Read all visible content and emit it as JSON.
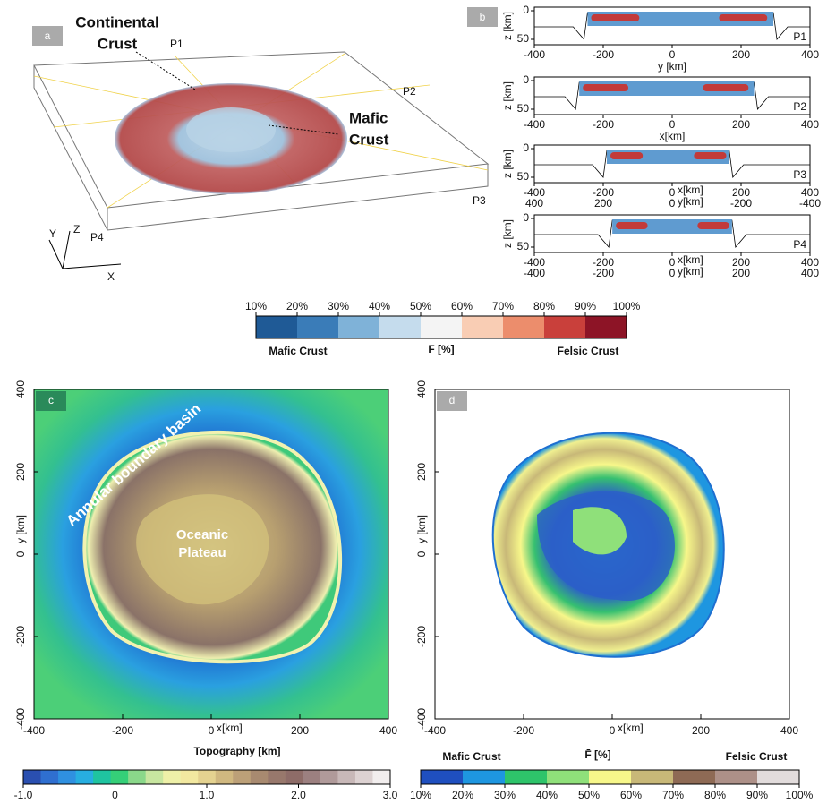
{
  "panel_a": {
    "label": "a",
    "continental_crust": [
      "Continental",
      "Crust"
    ],
    "mafic_crust": [
      "Mafic",
      "Crust"
    ],
    "profiles": [
      "P1",
      "P2",
      "P3",
      "P4"
    ],
    "axes": [
      "X",
      "Y",
      "Z"
    ]
  },
  "panel_b": {
    "label": "b",
    "ylabel": "z [km]",
    "yticks": [
      0,
      50
    ],
    "xlim": [
      -400,
      400
    ],
    "profiles": [
      {
        "name": "P1",
        "xlabel": "y [km]",
        "xticks": [
          -400,
          -200,
          0,
          200,
          400
        ]
      },
      {
        "name": "P2",
        "xlabel": "x[km]",
        "xticks": [
          -400,
          -200,
          0,
          200,
          400
        ]
      },
      {
        "name": "P3",
        "xlabel": "x[km]",
        "xticks": [
          -400,
          -200,
          0,
          200,
          400
        ],
        "xlabel2": "y[km]",
        "xticks2": [
          400,
          200,
          0,
          -200,
          -400
        ],
        "reversed2": true
      },
      {
        "name": "P4",
        "xlabel": "x[km]",
        "xticks": [
          -400,
          -200,
          0,
          200,
          400
        ],
        "xlabel2": "y[km]",
        "xticks2": [
          -400,
          -200,
          0,
          200,
          400
        ],
        "reversed2": false
      }
    ]
  },
  "colorbar_f": {
    "title": "F [%]",
    "left_label": "Mafic Crust",
    "right_label": "Felsic Crust",
    "lim": [
      10,
      100
    ],
    "colors": [
      "#1f5a96",
      "#3a7cb8",
      "#7fb2d8",
      "#c5dced",
      "#f4f4f4",
      "#f9cdb4",
      "#ec8d6c",
      "#c9403b",
      "#8d1426"
    ],
    "ticks": [
      {
        "value": 10,
        "label": "10%"
      },
      {
        "value": 20,
        "label": "20%"
      },
      {
        "value": 30,
        "label": "30%"
      },
      {
        "value": 40,
        "label": "40%"
      },
      {
        "value": 50,
        "label": "50%"
      },
      {
        "value": 60,
        "label": "60%"
      },
      {
        "value": 70,
        "label": "70%"
      },
      {
        "value": 80,
        "label": "80%"
      },
      {
        "value": 90,
        "label": "90%"
      },
      {
        "value": 100,
        "label": "100%"
      }
    ]
  },
  "panel_c": {
    "label": "c",
    "xlabel": "x[km]",
    "ylabel": "y [km]",
    "xlim": [
      -400,
      400
    ],
    "ylim": [
      -400,
      400
    ],
    "xticks": [
      -400,
      -200,
      0,
      200,
      400
    ],
    "yticks": [
      -400,
      -200,
      0,
      200,
      400
    ],
    "basin_label": "Annular boundary basin",
    "plateau_label": [
      "Oceanic",
      "Plateau"
    ],
    "colorbar_title": "Topography [km]",
    "colorbar_lim": [
      -1,
      3
    ],
    "colorbar_colors": [
      "#2a4fb0",
      "#2f6fd0",
      "#2f90e0",
      "#27aee0",
      "#1fc4a0",
      "#35cf78",
      "#8ad88a",
      "#c8e6a0",
      "#eef0a8",
      "#f2e8a0",
      "#e4d290",
      "#d0b880",
      "#bca078",
      "#a88a70",
      "#98786c",
      "#8e6c68",
      "#9c8080",
      "#b09a9a",
      "#c8b8b8",
      "#ddd2d2",
      "#f2eeee"
    ],
    "colorbar_ticks": [
      {
        "value": -1,
        "label": "-1.0"
      },
      0,
      {
        "value": 1,
        "label": "1.0"
      },
      {
        "value": 2,
        "label": "2.0"
      },
      {
        "value": 3,
        "label": "3.0"
      }
    ]
  },
  "panel_d": {
    "label": "d",
    "xlabel": "x[km]",
    "ylabel": "y [km]",
    "xlim": [
      -400,
      400
    ],
    "ylim": [
      -400,
      400
    ],
    "xticks": [
      -400,
      -200,
      0,
      200,
      400
    ],
    "yticks": [
      -400,
      -200,
      0,
      200,
      400
    ],
    "colorbar_title": "F̄ [%]",
    "colorbar_left": "Mafic Crust",
    "colorbar_right": "Felsic Crust",
    "colorbar_lim": [
      10,
      100
    ],
    "colorbar_colors": [
      "#1f4fbf",
      "#1e96e0",
      "#2ec46a",
      "#8fe07a",
      "#f7f78a",
      "#c8b878",
      "#8e6a55",
      "#ad9088",
      "#e2dcdc"
    ],
    "colorbar_ticks": [
      {
        "value": 10,
        "label": "10%"
      },
      {
        "value": 20,
        "label": "20%"
      },
      {
        "value": 30,
        "label": "30%"
      },
      {
        "value": 40,
        "label": "40%"
      },
      {
        "value": 50,
        "label": "50%"
      },
      {
        "value": 60,
        "label": "60%"
      },
      {
        "value": 70,
        "label": "70%"
      },
      {
        "value": 80,
        "label": "80%"
      },
      {
        "value": 90,
        "label": "90%"
      },
      {
        "value": 100,
        "label": "100%"
      }
    ]
  }
}
